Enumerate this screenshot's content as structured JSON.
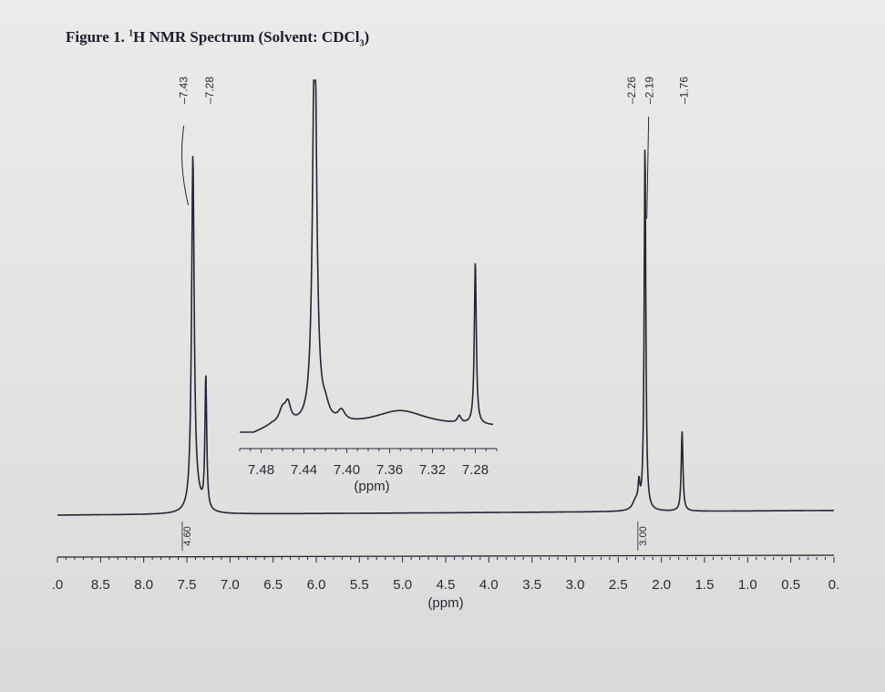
{
  "figure": {
    "title_prefix": "Figure 1. ",
    "title_sup": "1",
    "title_mid": "H NMR Spectrum (Solvent: CDCl",
    "title_sub": "3",
    "title_end": ")"
  },
  "chart_data": [
    {
      "type": "line",
      "title": "Figure 1. 1H NMR Spectrum (Solvent: CDCl3)",
      "xlabel": "(ppm)",
      "ylabel": "",
      "x_reversed": true,
      "xlim": [
        9.0,
        0.0
      ],
      "x_ticks": [
        ".0",
        "8.5",
        "8.0",
        "7.5",
        "7.0",
        "6.5",
        "6.0",
        "5.5",
        "5.0",
        "4.5",
        "4.0",
        "3.5",
        "3.0",
        "2.5",
        "2.0",
        "1.5",
        "1.0",
        "0.5",
        "0."
      ],
      "peak_labels": [
        "7.43",
        "7.28",
        "2.26",
        "2.19",
        "1.76"
      ],
      "peaks": [
        {
          "ppm": 7.43,
          "height": 0.79
        },
        {
          "ppm": 7.28,
          "height": 0.3
        },
        {
          "ppm": 2.26,
          "height": 0.05
        },
        {
          "ppm": 2.19,
          "height": 0.83
        },
        {
          "ppm": 1.76,
          "height": 0.18
        }
      ],
      "integrals": [
        {
          "label": "4.60",
          "ppm": 7.5
        },
        {
          "label": "3.00",
          "ppm": 2.22
        }
      ]
    },
    {
      "type": "line",
      "title": "",
      "xlabel": "(ppm)",
      "x_reversed": true,
      "xlim": [
        7.5,
        7.26
      ],
      "x_ticks": [
        "7.48",
        "7.44",
        "7.40",
        "7.36",
        "7.32",
        "7.28"
      ],
      "peaks": [
        {
          "ppm": 7.43,
          "height": 1.0
        },
        {
          "ppm": 7.28,
          "height": 0.45
        }
      ]
    }
  ]
}
